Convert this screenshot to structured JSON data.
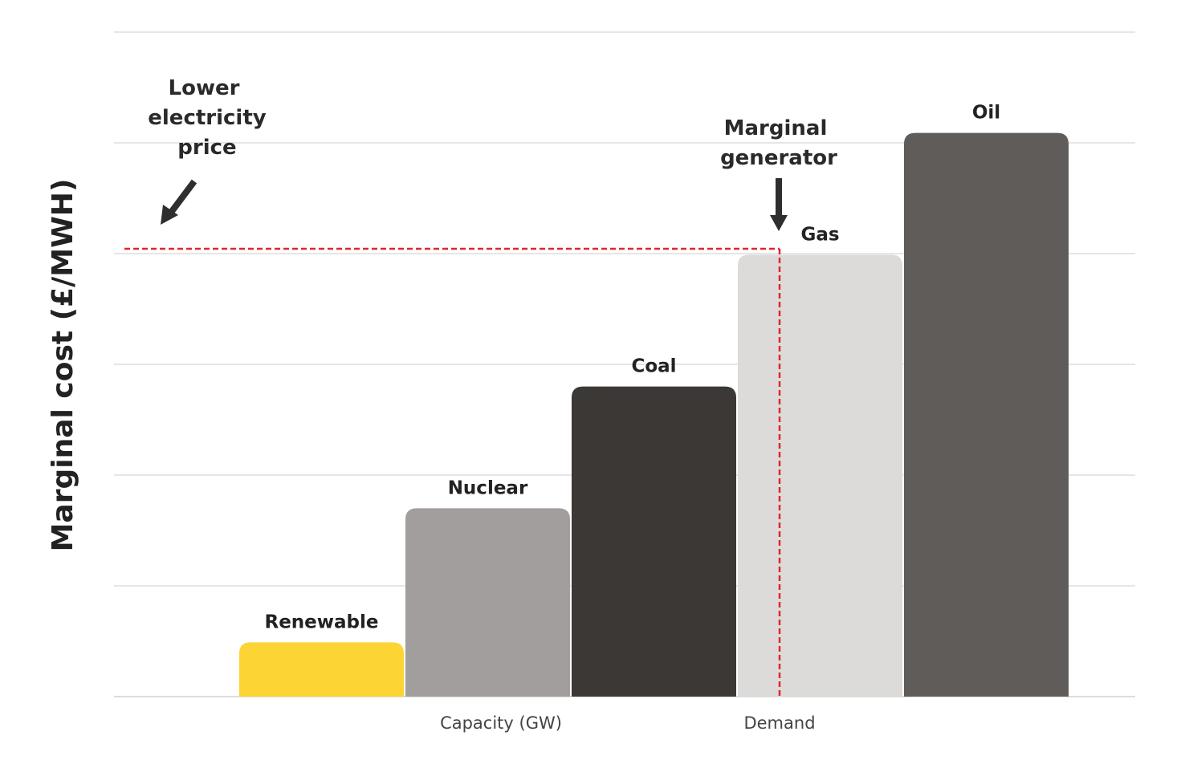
{
  "chart_data": {
    "type": "bar",
    "title": "",
    "xlabel": "Capacity (GW)",
    "ylabel": "Marginal cost (£/MWH)",
    "ylim": [
      0,
      6
    ],
    "y_units_note": "relative (no tick values shown); 1 unit = 1 gridline",
    "grid": true,
    "categories": [
      "Renewable",
      "Nuclear",
      "Coal",
      "Gas",
      "Oil"
    ],
    "values": [
      0.49,
      1.7,
      2.8,
      3.99,
      5.09
    ],
    "colors": [
      "#fcd535",
      "#a19e9d",
      "#3b3836",
      "#dcdbda",
      "#5f5c5a"
    ],
    "price_line": {
      "value": 4.0,
      "color": "#e0262d",
      "style": "dashed"
    },
    "demand_marker": {
      "label": "Demand"
    },
    "annotations": [
      {
        "text_lines": [
          "Lower",
          "electricity",
          "price"
        ],
        "arrow": "down-left"
      },
      {
        "text_lines": [
          "Marginal",
          "generator"
        ],
        "arrow": "down"
      }
    ]
  }
}
